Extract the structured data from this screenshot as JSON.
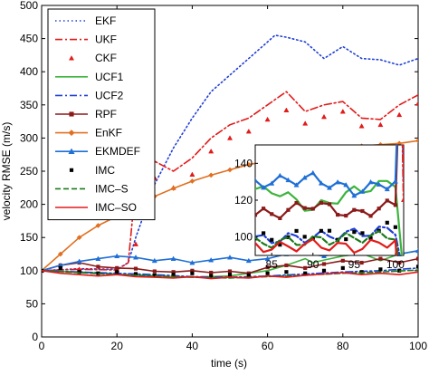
{
  "chart_data": {
    "type": "line",
    "xlabel": "time (s)",
    "ylabel": "velocity RMSE (m/s)",
    "xlim": [
      0,
      100
    ],
    "ylim": [
      0,
      500
    ],
    "x_ticks": [
      "0",
      "20",
      "40",
      "60",
      "80",
      "100"
    ],
    "y_ticks": [
      "0",
      "50",
      "100",
      "150",
      "200",
      "250",
      "300",
      "350",
      "400",
      "450",
      "500"
    ],
    "legend_position": "top-left",
    "grid": false,
    "series": [
      {
        "name": "EKF",
        "color": "#1f3fd6",
        "style": "dotted",
        "marker": "none",
        "x": [
          0,
          10,
          20,
          23,
          25,
          30,
          35,
          40,
          45,
          50,
          55,
          60,
          62,
          65,
          70,
          75,
          80,
          85,
          90,
          95,
          100
        ],
        "y": [
          100,
          103,
          102,
          112,
          150,
          230,
          285,
          330,
          370,
          395,
          420,
          445,
          455,
          452,
          445,
          420,
          438,
          420,
          418,
          410,
          420
        ]
      },
      {
        "name": "UKF",
        "color": "#e21a1a",
        "style": "dashdot",
        "marker": "none",
        "x": [
          0,
          10,
          20,
          23,
          25,
          30,
          35,
          40,
          45,
          50,
          55,
          60,
          65,
          70,
          75,
          80,
          85,
          90,
          95,
          100
        ],
        "y": [
          100,
          102,
          101,
          112,
          230,
          265,
          250,
          270,
          300,
          320,
          330,
          350,
          370,
          340,
          350,
          355,
          330,
          328,
          350,
          365
        ]
      },
      {
        "name": "CKF",
        "color": "#e21a1a",
        "style": "none",
        "marker": "triangle",
        "x": [
          0,
          10,
          20,
          25,
          30,
          35,
          40,
          45,
          50,
          55,
          60,
          65,
          70,
          75,
          80,
          85,
          90,
          95,
          100
        ],
        "y": [
          100,
          102,
          101,
          140,
          240,
          225,
          245,
          280,
          300,
          310,
          328,
          342,
          322,
          332,
          340,
          318,
          320,
          335,
          352
        ]
      },
      {
        "name": "UCF1",
        "color": "#3cb43c",
        "style": "solid",
        "marker": "none",
        "x": [
          0,
          10,
          20,
          30,
          40,
          50,
          55,
          60,
          65,
          70,
          72,
          75,
          80,
          85,
          90,
          95,
          100
        ],
        "y": [
          100,
          98,
          95,
          92,
          90,
          92,
          96,
          100,
          108,
          118,
          112,
          116,
          122,
          126,
          115,
          125,
          130
        ]
      },
      {
        "name": "UCF2",
        "color": "#1f3fd6",
        "style": "dashdot",
        "marker": "none",
        "x": [
          0,
          10,
          20,
          30,
          40,
          50,
          60,
          70,
          80,
          90,
          100
        ],
        "y": [
          100,
          98,
          96,
          94,
          91,
          90,
          92,
          95,
          98,
          100,
          104
        ]
      },
      {
        "name": "RPF",
        "color": "#8b1a1a",
        "style": "solid",
        "marker": "square",
        "x": [
          0,
          5,
          10,
          15,
          20,
          25,
          30,
          35,
          40,
          45,
          50,
          55,
          60,
          65,
          70,
          75,
          80,
          85,
          90,
          95,
          100
        ],
        "y": [
          100,
          108,
          112,
          106,
          104,
          103,
          99,
          98,
          100,
          97,
          99,
          96,
          105,
          108,
          104,
          110,
          115,
          112,
          118,
          112,
          118
        ]
      },
      {
        "name": "EnKF",
        "color": "#e07020",
        "style": "solid",
        "marker": "diamond",
        "x": [
          0,
          5,
          10,
          15,
          20,
          25,
          30,
          35,
          40,
          45,
          50,
          55,
          60,
          65,
          70,
          75,
          80,
          85,
          90,
          95,
          100
        ],
        "y": [
          100,
          125,
          150,
          168,
          182,
          198,
          212,
          224,
          235,
          244,
          252,
          260,
          265,
          272,
          278,
          280,
          285,
          288,
          290,
          292,
          296
        ]
      },
      {
        "name": "EKMDEF",
        "color": "#1f6fd6",
        "style": "solid",
        "marker": "triangle",
        "x": [
          0,
          5,
          10,
          15,
          20,
          25,
          30,
          35,
          40,
          45,
          50,
          55,
          60,
          65,
          70,
          75,
          80,
          85,
          90,
          95,
          100
        ],
        "y": [
          100,
          108,
          114,
          118,
          122,
          120,
          115,
          118,
          112,
          116,
          120,
          115,
          118,
          125,
          126,
          122,
          128,
          130,
          132,
          125,
          130
        ]
      },
      {
        "name": "IMC",
        "color": "#000000",
        "style": "none",
        "marker": "square",
        "x": [
          0,
          5,
          10,
          15,
          20,
          25,
          30,
          35,
          40,
          45,
          50,
          55,
          60,
          65,
          70,
          75,
          80,
          85,
          90,
          95,
          100
        ],
        "y": [
          100,
          104,
          98,
          96,
          98,
          95,
          93,
          94,
          96,
          92,
          94,
          93,
          96,
          98,
          96,
          100,
          104,
          98,
          102,
          100,
          106
        ]
      },
      {
        "name": "IMC–S",
        "color": "#1b7a1b",
        "style": "dashed",
        "marker": "none",
        "x": [
          0,
          10,
          20,
          30,
          40,
          50,
          60,
          70,
          80,
          90,
          100
        ],
        "y": [
          100,
          97,
          94,
          92,
          90,
          89,
          91,
          93,
          96,
          98,
          101
        ]
      },
      {
        "name": "IMC–SO",
        "color": "#e21a1a",
        "style": "solid",
        "marker": "none",
        "x": [
          0,
          5,
          10,
          15,
          20,
          25,
          30,
          35,
          40,
          45,
          50,
          55,
          60,
          65,
          70,
          75,
          80,
          85,
          90,
          95,
          100
        ],
        "y": [
          100,
          96,
          94,
          92,
          94,
          91,
          90,
          89,
          91,
          88,
          90,
          89,
          92,
          90,
          93,
          95,
          97,
          94,
          96,
          94,
          98
        ]
      }
    ],
    "inset": {
      "xlim": [
        83,
        101
      ],
      "ylim": [
        90,
        150
      ],
      "x_ticks": [
        "85",
        "90",
        "95",
        "100"
      ],
      "y_ticks": [
        "100",
        "120",
        "140"
      ]
    }
  }
}
